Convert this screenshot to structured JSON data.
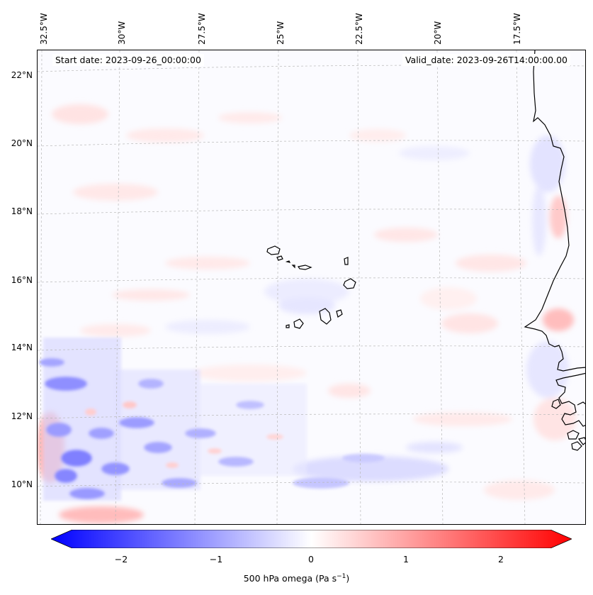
{
  "map": {
    "start_date": "Start date: 2023-09-26_00:00:00",
    "valid_date": "Valid_date: 2023-09-26T14:00:00.00",
    "lon_labels": [
      "32.5°W",
      "30°W",
      "27.5°W",
      "25°W",
      "22.5°W",
      "20°W",
      "17.5°W"
    ],
    "lat_labels": [
      "22°N",
      "20°N",
      "18°N",
      "16°N",
      "14°N",
      "12°N",
      "10°N"
    ],
    "field": "500 hPa omega",
    "region": "Cabo Verde islands and West African coast (Senegal / Guinea-Bissau)",
    "gridlines": true
  },
  "colorbar": {
    "label_prefix": "500 hPa omega (Pa s",
    "label_exp": "−1",
    "label_suffix": ")",
    "ticks": [
      "−2",
      "−1",
      "0",
      "1",
      "2"
    ],
    "range": [
      -2.7,
      2.7
    ],
    "extend": "both",
    "colors": {
      "low": "#0000ff",
      "mid": "#ffffff",
      "high": "#ff0000"
    }
  }
}
